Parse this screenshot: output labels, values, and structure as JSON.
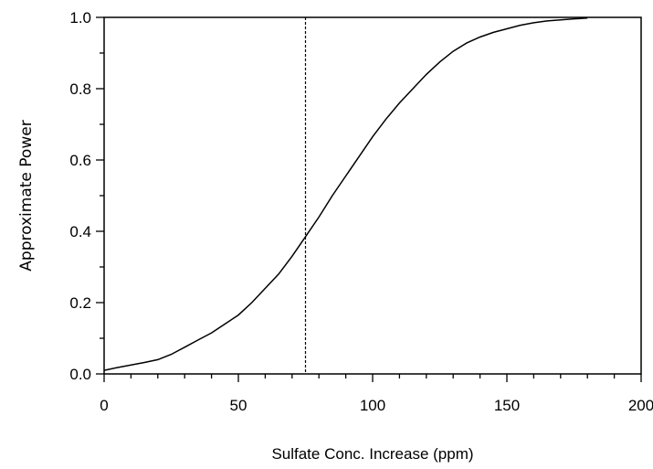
{
  "chart_data": {
    "type": "line",
    "title": "",
    "xlabel": "Sulfate Conc. Increase (ppm)",
    "ylabel": "Approximate Power",
    "xlim": [
      0,
      200
    ],
    "ylim": [
      0,
      1.0
    ],
    "x_ticks": [
      0,
      50,
      100,
      150,
      200
    ],
    "x_tick_labels": [
      "0",
      "50",
      "100",
      "150",
      "200"
    ],
    "y_ticks": [
      0,
      0.2,
      0.4,
      0.6,
      0.8,
      1.0
    ],
    "y_tick_labels": [
      "0.0",
      "0.2",
      "0.4",
      "0.6",
      "0.8",
      "1.0"
    ],
    "grid": false,
    "series": [
      {
        "color": "#000000",
        "style": "solid",
        "x": [
          0,
          5,
          10,
          15,
          20,
          25,
          30,
          35,
          40,
          45,
          50,
          55,
          60,
          65,
          70,
          75,
          80,
          85,
          90,
          95,
          100,
          105,
          110,
          115,
          120,
          125,
          130,
          135,
          140,
          145,
          150,
          155,
          160,
          165,
          170,
          175,
          180
        ],
        "y": [
          0.01,
          0.018,
          0.025,
          0.032,
          0.04,
          0.055,
          0.075,
          0.095,
          0.115,
          0.14,
          0.165,
          0.2,
          0.24,
          0.28,
          0.33,
          0.385,
          0.44,
          0.5,
          0.555,
          0.61,
          0.665,
          0.715,
          0.76,
          0.8,
          0.84,
          0.875,
          0.905,
          0.928,
          0.945,
          0.958,
          0.968,
          0.978,
          0.985,
          0.99,
          0.993,
          0.996,
          0.998
        ]
      }
    ],
    "reference_line": {
      "orientation": "vertical",
      "x": 75,
      "style": "dashed",
      "color": "#000000"
    }
  }
}
